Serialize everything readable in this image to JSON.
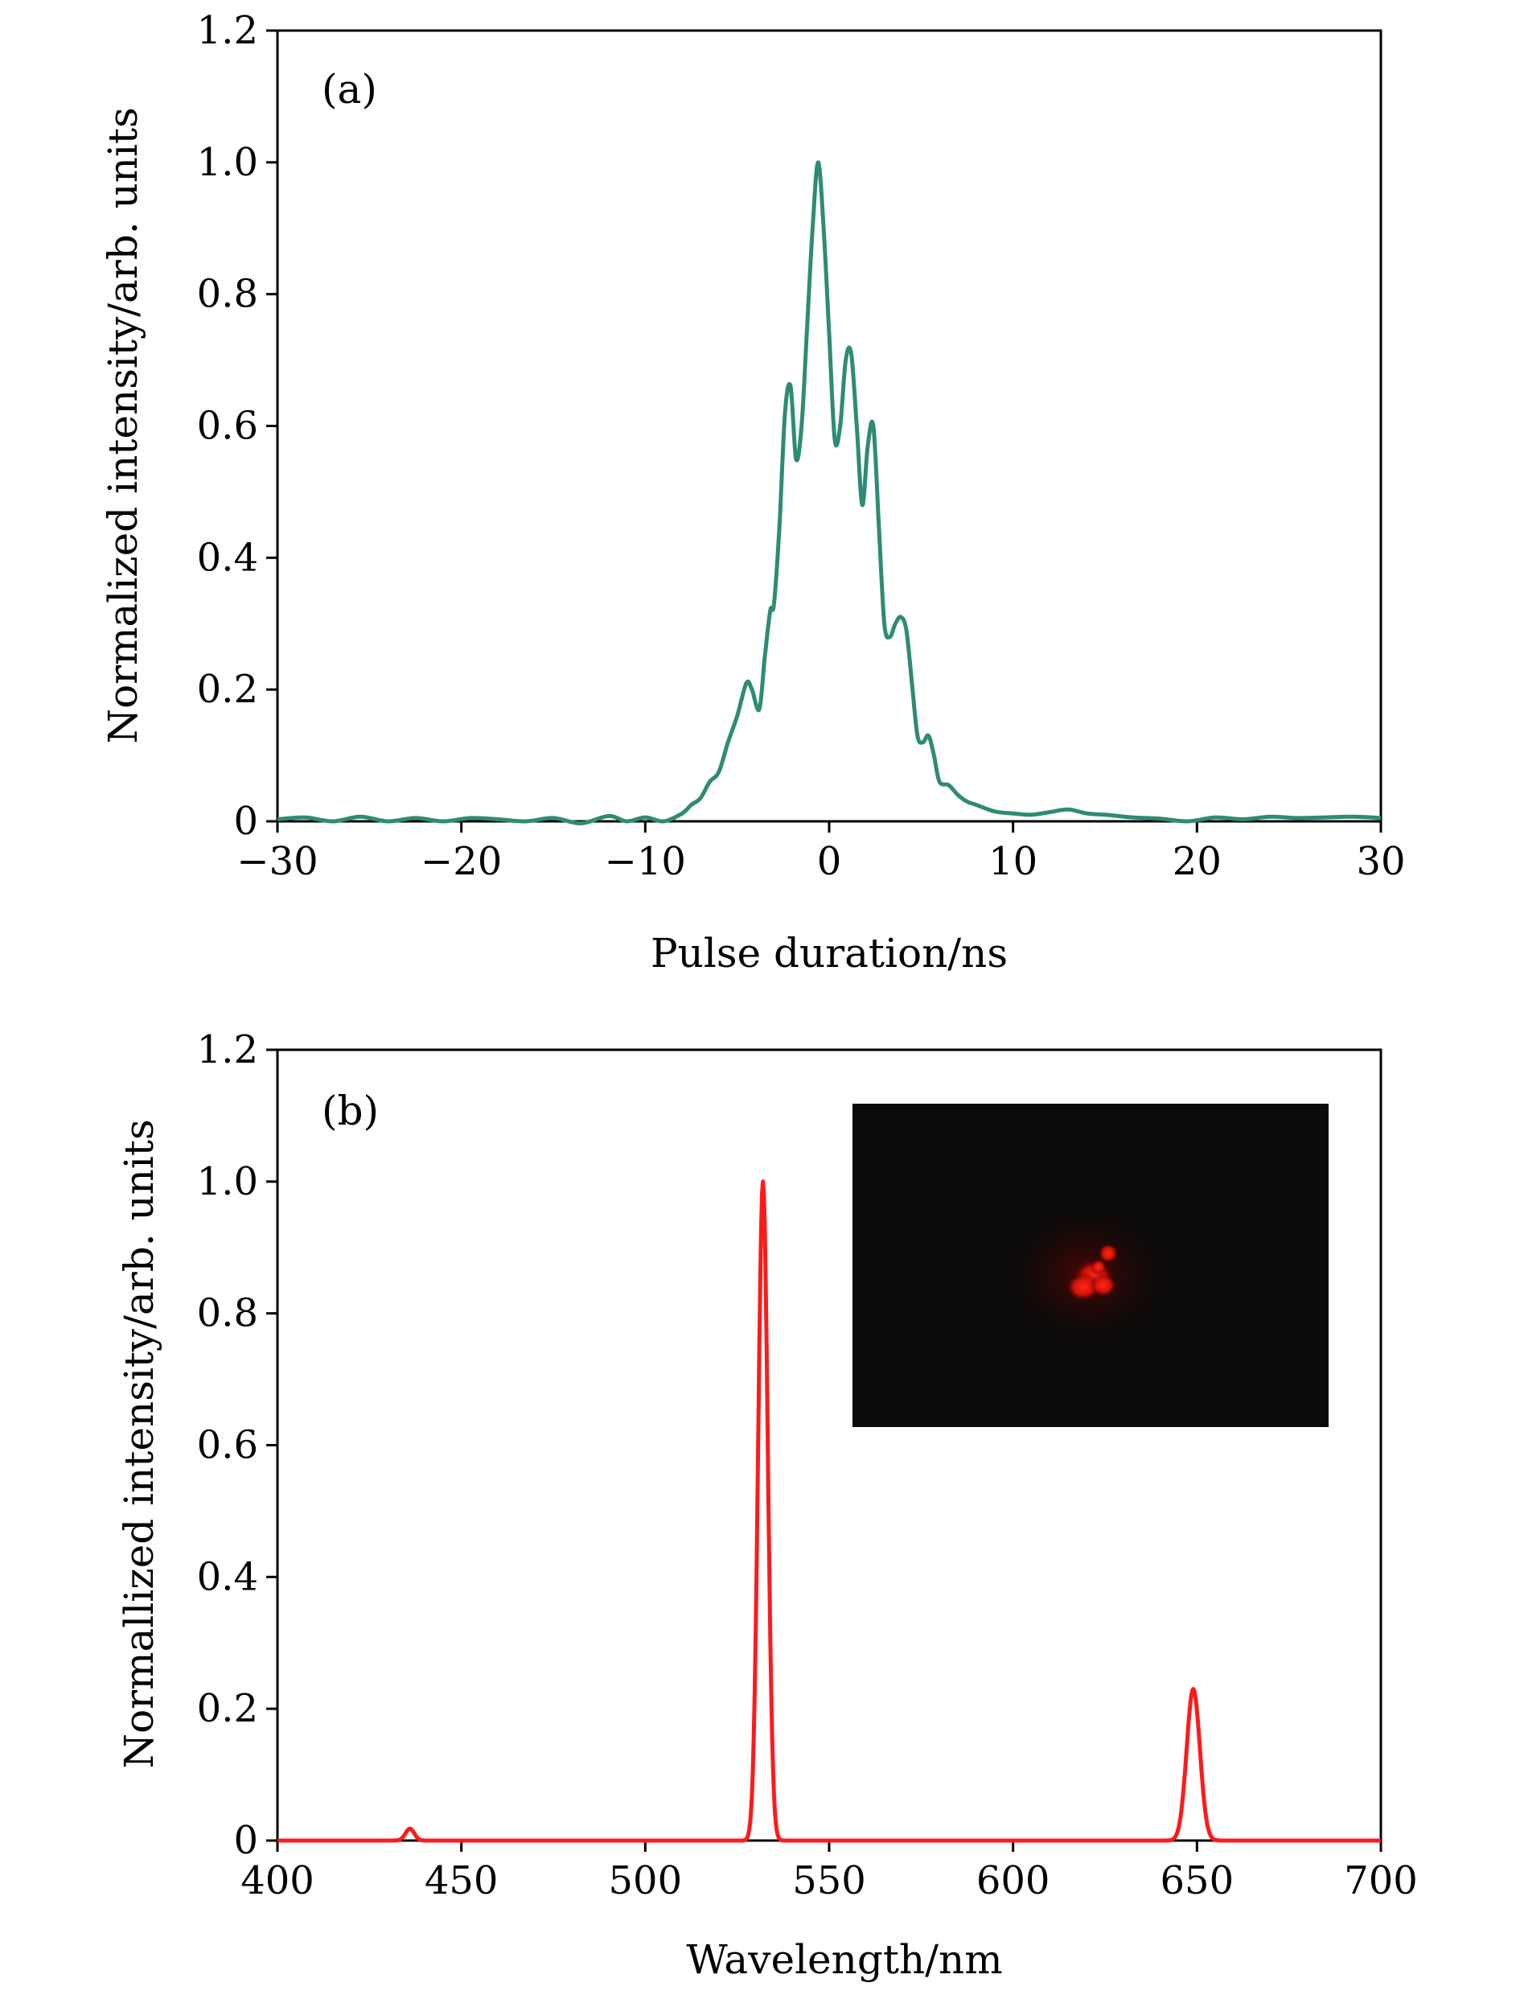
{
  "chart_data": [
    {
      "type": "line",
      "panel_label": "(a)",
      "xlabel": "Pulse duration/ns",
      "ylabel": "Normalized intensity/arb. units",
      "xlim": [
        -30,
        30
      ],
      "ylim": [
        0,
        1.2
      ],
      "xticks": [
        -30,
        -20,
        -10,
        0,
        10,
        20,
        30
      ],
      "xtick_labels": [
        "−30",
        "−20",
        "−10",
        "0",
        "10",
        "20",
        "30"
      ],
      "yticks": [
        0,
        0.2,
        0.4,
        0.6,
        0.8,
        1.0,
        1.2
      ],
      "ytick_labels": [
        "0",
        "0.2",
        "0.4",
        "0.6",
        "0.8",
        "1.0",
        "1.2"
      ],
      "color": "#2e8b74",
      "grid": false,
      "series": [
        {
          "name": "pulse",
          "x": [
            -30,
            -28.5,
            -27,
            -25.5,
            -24,
            -22.5,
            -21,
            -19.5,
            -18,
            -16.5,
            -15,
            -13.5,
            -12,
            -11,
            -10,
            -9,
            -8,
            -7.5,
            -7,
            -6.5,
            -6,
            -5.5,
            -5,
            -4.5,
            -4.2,
            -3.8,
            -3.5,
            -3.2,
            -3,
            -2.7,
            -2.4,
            -2.1,
            -1.8,
            -1.5,
            -1.2,
            -0.9,
            -0.6,
            -0.3,
            0,
            0.3,
            0.6,
            0.9,
            1.2,
            1.5,
            1.8,
            2.1,
            2.4,
            2.7,
            3,
            3.3,
            3.6,
            3.9,
            4.2,
            4.5,
            4.8,
            5.1,
            5.4,
            5.7,
            6,
            6.5,
            7,
            7.5,
            8,
            9,
            10,
            11,
            12,
            13,
            14,
            15,
            16.5,
            18,
            19.5,
            21,
            22.5,
            24,
            25.5,
            27,
            28.5,
            30
          ],
          "y": [
            0.003,
            0.006,
            0.0,
            0.007,
            0.0,
            0.005,
            0.0,
            0.005,
            0.003,
            0.0,
            0.005,
            -0.003,
            0.008,
            0.0,
            0.006,
            0.0,
            0.012,
            0.025,
            0.035,
            0.06,
            0.075,
            0.12,
            0.16,
            0.21,
            0.2,
            0.17,
            0.25,
            0.32,
            0.33,
            0.45,
            0.62,
            0.66,
            0.55,
            0.6,
            0.75,
            0.9,
            1.0,
            0.9,
            0.74,
            0.58,
            0.6,
            0.7,
            0.71,
            0.6,
            0.48,
            0.57,
            0.6,
            0.45,
            0.3,
            0.28,
            0.3,
            0.31,
            0.29,
            0.21,
            0.13,
            0.12,
            0.13,
            0.1,
            0.06,
            0.055,
            0.04,
            0.03,
            0.025,
            0.015,
            0.012,
            0.01,
            0.014,
            0.018,
            0.012,
            0.01,
            0.006,
            0.004,
            0.0,
            0.006,
            0.003,
            0.007,
            0.005,
            0.006,
            0.007,
            0.005
          ]
        }
      ]
    },
    {
      "type": "line",
      "panel_label": "(b)",
      "xlabel": "Wavelength/nm",
      "ylabel": "Normallized intensity/arb. units",
      "xlim": [
        400,
        700
      ],
      "ylim": [
        0,
        1.2
      ],
      "xticks": [
        400,
        450,
        500,
        550,
        600,
        650,
        700
      ],
      "xtick_labels": [
        "400",
        "450",
        "500",
        "550",
        "600",
        "650",
        "700"
      ],
      "yticks": [
        0,
        0.2,
        0.4,
        0.6,
        0.8,
        1.0,
        1.2
      ],
      "ytick_labels": [
        "0",
        "0.2",
        "0.4",
        "0.6",
        "0.8",
        "1.0",
        "1.2"
      ],
      "color": "#ff1a1a",
      "grid": false,
      "inset": "beam spot photograph",
      "series": [
        {
          "name": "spectrum",
          "peaks": [
            {
              "center": 436,
              "height": 0.018,
              "width": 1.2
            },
            {
              "center": 532,
              "height": 1.0,
              "width": 1.3
            },
            {
              "center": 649,
              "height": 0.23,
              "width": 1.8
            }
          ],
          "baseline": 0.0
        }
      ]
    }
  ]
}
